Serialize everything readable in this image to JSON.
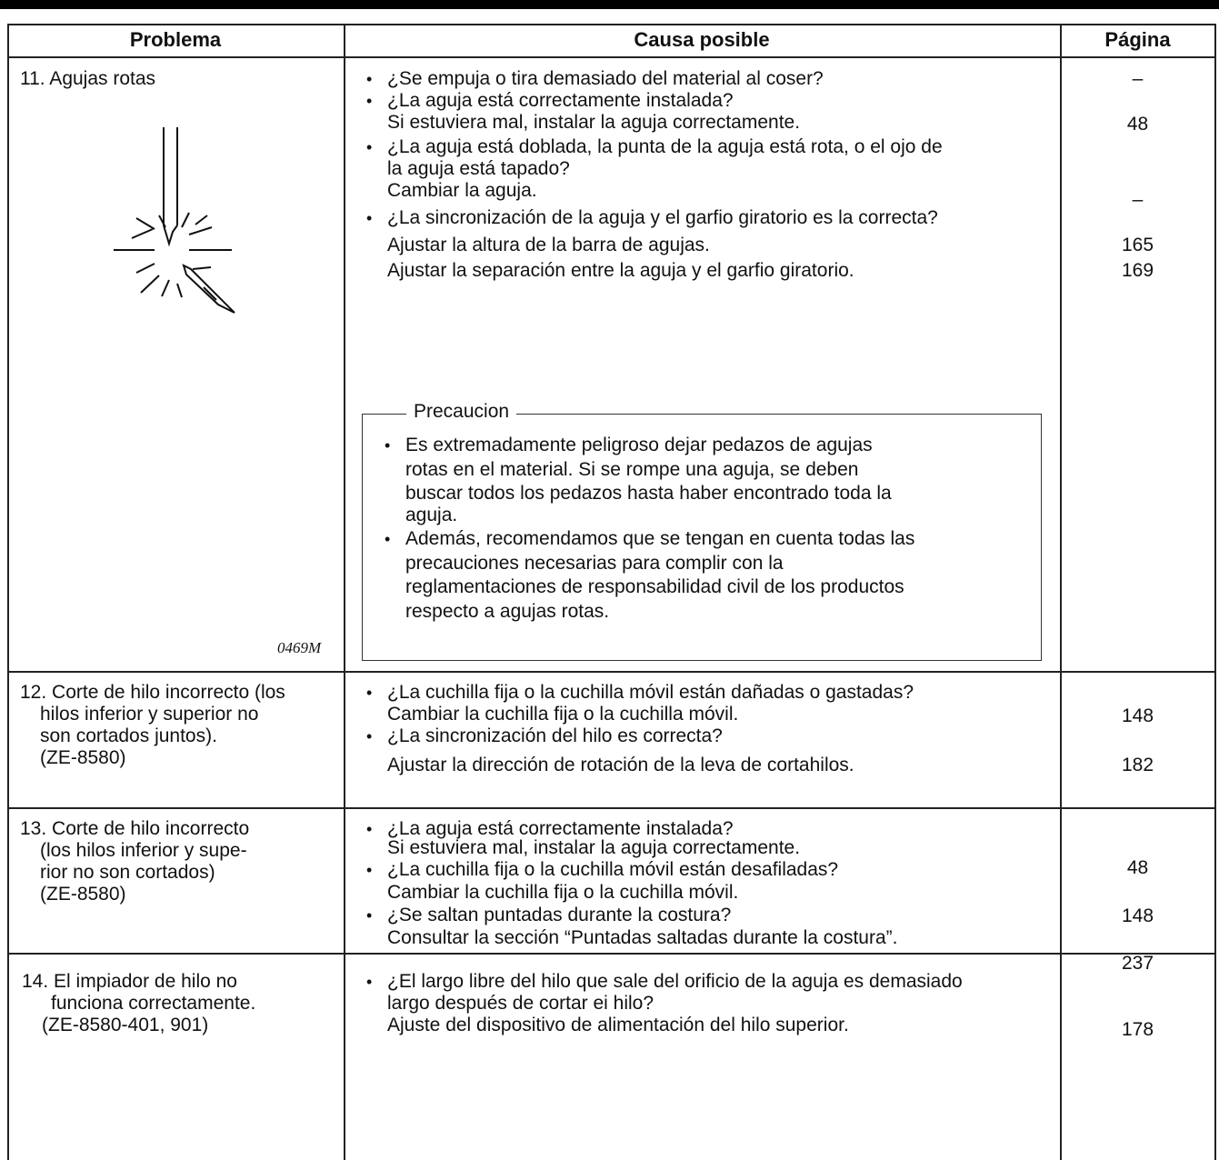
{
  "header": {
    "problem": "Problema",
    "cause": "Causa posible",
    "page": "Página"
  },
  "rows": [
    {
      "problem": [
        "11. Agujas rotas"
      ],
      "figure_label": "0469M",
      "causes": [
        [
          "¿Se empuja o tira demasiado del material al coser?"
        ],
        [
          "¿La aguja está correctamente instalada?",
          "Si estuviera mal, instalar la aguja correctamente."
        ],
        [
          "¿La aguja está doblada, la punta de la aguja está rota, o el ojo de",
          "la aguja está tapado?",
          "Cambiar la aguja."
        ],
        [
          "¿La sincronización de la aguja y el garfio giratorio es la correcta?",
          "Ajustar la altura de la barra de agujas.",
          "Ajustar la separación entre la aguja y el garfio giratorio."
        ]
      ],
      "pages": [
        "–",
        "48",
        "–",
        "165",
        "169"
      ],
      "caution": {
        "title": "Precaucion",
        "items": [
          [
            "Es extremadamente peligroso dejar pedazos de agujas",
            "rotas en el material. Si se rompe una aguja, se deben",
            "buscar todos los pedazos hasta haber encontrado toda la",
            "aguja."
          ],
          [
            "Además, recomendamos que se tengan en cuenta todas las",
            "precauciones necesarias para complir con la",
            "reglamentaciones de responsabilidad civil de los productos",
            "respecto a agujas rotas."
          ]
        ]
      }
    },
    {
      "problem": [
        "12. Corte de hilo incorrecto (los",
        "hilos inferior y superior no",
        "son cortados juntos).",
        "(ZE-8580)"
      ],
      "causes": [
        [
          "¿La cuchilla fija o la cuchilla móvil están dañadas o gastadas?",
          "Cambiar la cuchilla fija o la cuchilla móvil."
        ],
        [
          "¿La sincronización del hilo es correcta?",
          "Ajustar la dirección de rotación de la leva de cortahilos."
        ]
      ],
      "pages": [
        "148",
        "182"
      ]
    },
    {
      "problem": [
        "13. Corte de hilo incorrecto",
        "(los hilos inferior y supe-",
        "rior no son cortados)",
        "(ZE-8580)"
      ],
      "causes": [
        [
          "¿La aguja está correctamente instalada?",
          "Si estuviera mal, instalar la aguja correctamente."
        ],
        [
          "¿La cuchilla fija o la cuchilla móvil están desafiladas?",
          "Cambiar la cuchilla fija o la cuchilla móvil."
        ],
        [
          "¿Se saltan puntadas durante la costura?",
          "Consultar la sección “Puntadas saltadas durante la costura”."
        ]
      ],
      "pages": [
        "48",
        "148",
        "237"
      ]
    },
    {
      "problem": [
        "14. El impiador de hilo no",
        "funciona correctamente.",
        "(ZE-8580-401, 901)"
      ],
      "causes": [
        [
          "¿El largo libre del hilo que sale del orificio de la aguja es demasiado",
          "largo después de cortar ei hilo?",
          "Ajuste del dispositivo de alimentación del hilo superior."
        ]
      ],
      "pages": [
        "178"
      ]
    }
  ]
}
